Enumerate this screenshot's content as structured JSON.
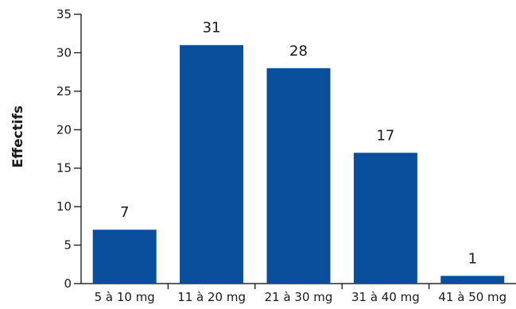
{
  "chart_data": {
    "type": "bar",
    "categories": [
      "5 à 10 mg",
      "11 à 20 mg",
      "21 à 30 mg",
      "31 à 40 mg",
      "41 à 50 mg"
    ],
    "values": [
      7,
      31,
      28,
      17,
      1
    ],
    "data_labels": [
      "7",
      "31",
      "28",
      "17",
      "1"
    ],
    "ylabel": "Effectifs",
    "ylim": [
      0,
      35
    ],
    "yticks": [
      0,
      5,
      10,
      15,
      20,
      25,
      30,
      35
    ],
    "ytick_labels": [
      "0",
      "5",
      "10",
      "15",
      "20",
      "25",
      "30",
      "35"
    ],
    "grid": false,
    "bar_color": "#0a4f9c"
  }
}
